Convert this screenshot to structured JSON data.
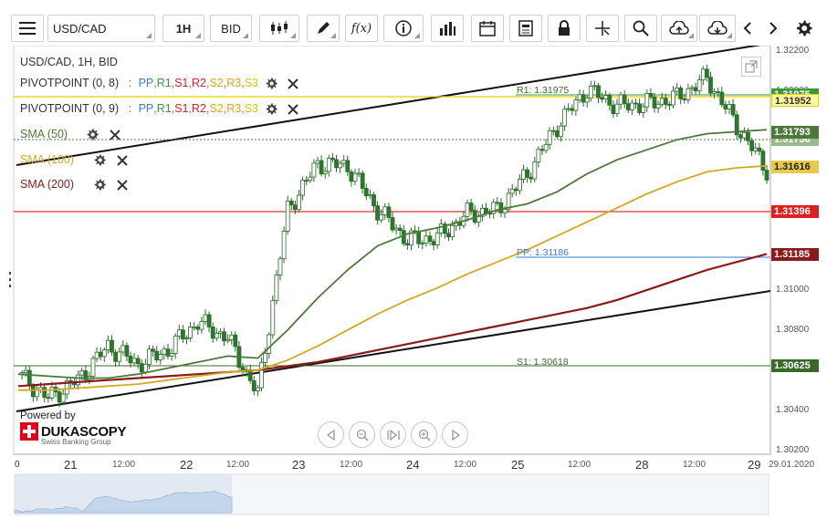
{
  "toolbar": {
    "symbol": "USD/CAD",
    "timeframe": "1H",
    "side": "BID",
    "fx_label": "f(x)"
  },
  "legend": {
    "title": "USD/CAD, 1H, BID",
    "pivot1": {
      "name": "PIVOTPOINT (0, 8)",
      "sep": ": "
    },
    "pivot2": {
      "name": "PIVOTPOINT (0, 9)",
      "sep": ": "
    },
    "pivot_levels": [
      {
        "label": "PP",
        "color": "#3a7bd5"
      },
      {
        "label": "R1",
        "color": "#3a9a3a"
      },
      {
        "label": "S1",
        "color": "#d42020"
      },
      {
        "label": "R2",
        "color": "#d42020"
      },
      {
        "label": "S2",
        "color": "#e8a317"
      },
      {
        "label": "R3",
        "color": "#e8a317"
      },
      {
        "label": "S3",
        "color": "#e6c200"
      }
    ],
    "sma50": {
      "label": "SMA (50)",
      "color": "#4a7a3a"
    },
    "sma100": {
      "label": "SMA (100)",
      "color": "#d4a820"
    },
    "sma200": {
      "label": "SMA (200)",
      "color": "#8b1a1a"
    }
  },
  "levels": {
    "r1_label": "R1: 1.31975",
    "pp_label": "PP: 1.31186",
    "s1_label": "S1: 1.30618"
  },
  "price_tags": {
    "r1_a": "1.31975",
    "r1_b": "1.31952",
    "sma50_a": "1.31793",
    "sma50_b": "1.31756",
    "sma100": "1.31616",
    "red_level": "1.31396",
    "sma200": "1.31185",
    "s1": "1.30625"
  },
  "watermark": {
    "powered_by": "Powered by",
    "brand": "DUKASCOPY",
    "sub": "Swiss Banking Group"
  },
  "chart_data": {
    "type": "line",
    "title": "USD/CAD, 1H, BID",
    "y_ticks": [
      "1.32200",
      "1.32000",
      "1.31000",
      "1.30800",
      "1.30400",
      "1.30200"
    ],
    "x_ticks": [
      "0",
      "21",
      "12:00",
      "22",
      "12:00",
      "23",
      "12:00",
      "24",
      "12:00",
      "25",
      "12:00",
      "28",
      "12:00",
      "29",
      "29.01.2020"
    ],
    "ylim": [
      1.3018,
      1.3222
    ],
    "x": [
      "20 18:00",
      "21 00:00",
      "21 06:00",
      "21 12:00",
      "21 18:00",
      "22 00:00",
      "22 06:00",
      "22 12:00",
      "22 18:00",
      "23 00:00",
      "23 06:00",
      "23 12:00",
      "23 18:00",
      "24 00:00",
      "24 06:00",
      "24 12:00",
      "24 18:00",
      "25 00:00",
      "25 06:00",
      "25 12:00",
      "25 18:00",
      "28 00:00",
      "28 06:00",
      "28 12:00",
      "28 18:00",
      "29 00:00"
    ],
    "series": [
      {
        "name": "USD/CAD",
        "color": "#2a7a2a",
        "values": [
          1.3058,
          1.3046,
          1.3055,
          1.3072,
          1.3063,
          1.307,
          1.3084,
          1.3076,
          1.3048,
          1.314,
          1.3163,
          1.3162,
          1.314,
          1.3125,
          1.3126,
          1.3138,
          1.314,
          1.3158,
          1.3182,
          1.32,
          1.3192,
          1.3193,
          1.3196,
          1.3206,
          1.3182,
          1.316
        ]
      },
      {
        "name": "SMA (50)",
        "color": "#4a7a3a",
        "values": [
          1.3058,
          1.3057,
          1.3056,
          1.3056,
          1.3058,
          1.3061,
          1.3064,
          1.3067,
          1.3066,
          1.308,
          1.3096,
          1.311,
          1.3122,
          1.3128,
          1.3131,
          1.3135,
          1.314,
          1.3143,
          1.3149,
          1.3158,
          1.3165,
          1.317,
          1.3175,
          1.3178,
          1.3179,
          1.318
        ]
      },
      {
        "name": "SMA (100)",
        "color": "#d4a820",
        "values": [
          1.305,
          1.305,
          1.3051,
          1.3052,
          1.3053,
          1.3055,
          1.3057,
          1.3059,
          1.306,
          1.3065,
          1.3072,
          1.308,
          1.3088,
          1.3095,
          1.3101,
          1.3108,
          1.3114,
          1.312,
          1.3127,
          1.3134,
          1.3141,
          1.3148,
          1.3154,
          1.3159,
          1.3161,
          1.3162
        ]
      },
      {
        "name": "SMA (200)",
        "color": "#8b1a1a",
        "values": [
          1.3052,
          1.3053,
          1.3054,
          1.3055,
          1.3056,
          1.3057,
          1.3058,
          1.3059,
          1.306,
          1.3062,
          1.3064,
          1.3067,
          1.307,
          1.3073,
          1.3076,
          1.3079,
          1.3082,
          1.3085,
          1.3088,
          1.3091,
          1.3095,
          1.31,
          1.3105,
          1.311,
          1.3114,
          1.3118
        ]
      }
    ],
    "horizontal_levels": [
      {
        "name": "R1",
        "value": 1.31975,
        "color": "#3a9a3a"
      },
      {
        "name": "PP",
        "value": 1.31186,
        "color": "#3a7bd5"
      },
      {
        "name": "S1",
        "value": 1.30618,
        "color": "#3a6a2a"
      }
    ],
    "grid": true
  }
}
